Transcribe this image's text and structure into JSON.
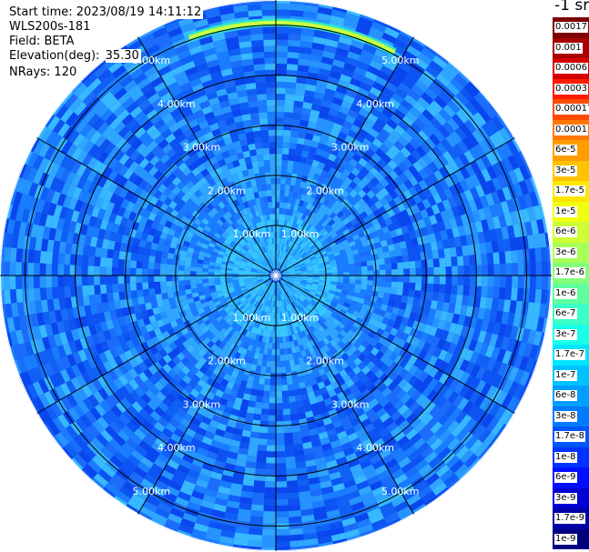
{
  "header": {
    "start_time": "Start time: 2023/08/19 14:11:12",
    "instrument": "WLS200s-181",
    "field": "Field: BETA",
    "elevation_label": "Elevation(deg):",
    "elevation_value": "35.30",
    "nrays": "NRays: 120"
  },
  "colorbar": {
    "unit": "-1 sr",
    "entries": [
      {
        "label": "0.0017",
        "color": "#7f0000"
      },
      {
        "label": "0.001",
        "color": "#a80000"
      },
      {
        "label": "0.0006",
        "color": "#d40000"
      },
      {
        "label": "0.0003",
        "color": "#ff1a00"
      },
      {
        "label": "0.00017",
        "color": "#ff4a00"
      },
      {
        "label": "0.0001",
        "color": "#ff7700"
      },
      {
        "label": "6e-5",
        "color": "#ff9d00"
      },
      {
        "label": "3e-5",
        "color": "#ffc200"
      },
      {
        "label": "1.7e-5",
        "color": "#ffe600"
      },
      {
        "label": "1e-5",
        "color": "#f0ff0f"
      },
      {
        "label": "6e-6",
        "color": "#ccff33"
      },
      {
        "label": "3e-6",
        "color": "#a8ff57"
      },
      {
        "label": "1.7e-6",
        "color": "#84ff7b"
      },
      {
        "label": "1e-6",
        "color": "#5fffa0"
      },
      {
        "label": "6e-7",
        "color": "#3bffc4"
      },
      {
        "label": "3e-7",
        "color": "#17ffe8"
      },
      {
        "label": "1.7e-7",
        "color": "#00e6ff"
      },
      {
        "label": "1e-7",
        "color": "#00c2ff"
      },
      {
        "label": "6e-8",
        "color": "#009eff"
      },
      {
        "label": "3e-8",
        "color": "#007aff"
      },
      {
        "label": "1.7e-8",
        "color": "#0056ff"
      },
      {
        "label": "1e-8",
        "color": "#0032ff"
      },
      {
        "label": "6e-9",
        "color": "#000eff"
      },
      {
        "label": "3e-9",
        "color": "#0000d4"
      },
      {
        "label": "1.7e-9",
        "color": "#0000a8"
      },
      {
        "label": "1e-9",
        "color": "#00007f"
      }
    ]
  },
  "chart_data": {
    "type": "polar-scan",
    "range_unit": "km",
    "range_max_km": 5.5,
    "range_rings": [
      {
        "range_km": 1,
        "label": "1.00km"
      },
      {
        "range_km": 2,
        "label": "2.00km"
      },
      {
        "range_km": 3,
        "label": "3.00km"
      },
      {
        "range_km": 4,
        "label": "4.00km"
      },
      {
        "range_km": 5,
        "label": "5.00km"
      }
    ],
    "spokes_deg": [
      0,
      30,
      60,
      90,
      120,
      150,
      180,
      210,
      240,
      270,
      300,
      330
    ],
    "ring_label_angles_deg": [
      30,
      150,
      210,
      330
    ],
    "nrays": 120,
    "feature": {
      "description_color": "#c8ff40",
      "azimuth_from_deg": 340,
      "azimuth_to_deg": 28,
      "range_km": 5.05
    },
    "background_level": "3e-8"
  },
  "colors": {
    "spoke": "#000000",
    "ring": "#000000",
    "ring_label": "#ffffff"
  }
}
